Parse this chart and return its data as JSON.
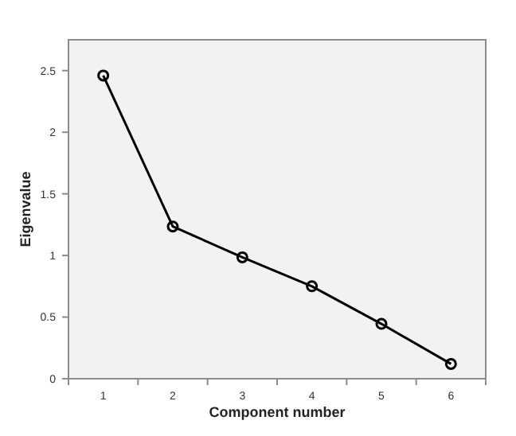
{
  "chart_data": {
    "type": "line",
    "xlabel": "Component number",
    "ylabel": "Eigenvalue",
    "categories": [
      "1",
      "2",
      "3",
      "4",
      "5",
      "6"
    ],
    "series": [
      {
        "color": "#000000",
        "values": [
          2.46,
          1.235,
          0.985,
          0.75,
          0.445,
          0.12
        ]
      }
    ],
    "ylim": [
      0,
      2.75
    ],
    "yticks": [
      0,
      0.5,
      1,
      1.5,
      2,
      2.5
    ],
    "marker": "circle",
    "grid": false
  }
}
